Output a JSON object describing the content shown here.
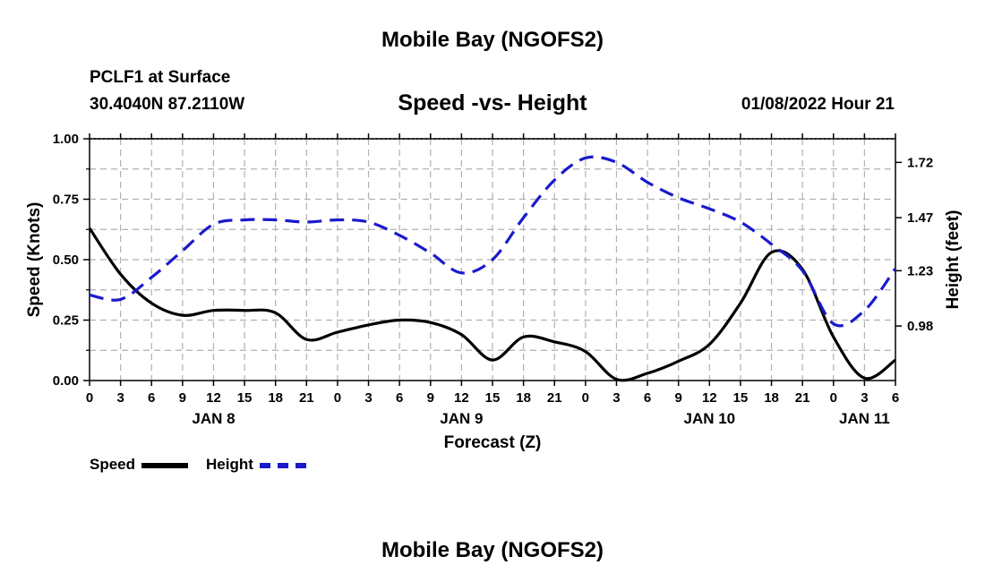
{
  "header": {
    "title": "Mobile Bay (NGOFS2)",
    "station": "PCLF1 at Surface",
    "coords": "30.4040N  87.2110W",
    "subtitle": "Speed -vs- Height",
    "datetime": "01/08/2022 Hour 21"
  },
  "footer": {
    "title": "Mobile Bay (NGOFS2)"
  },
  "legend": {
    "speed_label": "Speed",
    "height_label": "Height"
  },
  "colors": {
    "speed": "#000000",
    "height": "#1a1acc",
    "grid": "#b0b0b0"
  },
  "chart_data": {
    "type": "line",
    "xlabel": "Forecast (Z)",
    "ylabel_left": "Speed (Knots)",
    "ylabel_right": "Height (feet)",
    "x_unit": "hours from Jan 8 00Z",
    "xlim": [
      0,
      78
    ],
    "ylim_left": [
      0,
      1
    ],
    "ylim_right": [
      0.7333,
      1.8267
    ],
    "grid": true,
    "x_ticks": [
      0,
      3,
      6,
      9,
      12,
      15,
      18,
      21,
      24,
      27,
      30,
      33,
      36,
      39,
      42,
      45,
      48,
      51,
      54,
      57,
      60,
      63,
      66,
      69,
      72,
      75,
      78
    ],
    "x_tick_labels": [
      "0",
      "3",
      "6",
      "9",
      "12",
      "15",
      "18",
      "21",
      "0",
      "3",
      "6",
      "9",
      "12",
      "15",
      "18",
      "21",
      "0",
      "3",
      "6",
      "9",
      "12",
      "15",
      "18",
      "21",
      "0",
      "3",
      "6"
    ],
    "y_ticks_left": [
      0,
      0.25,
      0.5,
      0.75,
      1
    ],
    "y_tick_labels_left": [
      "0.00",
      "0.25",
      "0.50",
      "0.75",
      "1.00"
    ],
    "y_ticks_right": [
      0.98,
      1.23,
      1.47,
      1.72
    ],
    "y_tick_labels_right": [
      "0.98",
      "1.23",
      "1.47",
      "1.72"
    ],
    "day_labels": [
      {
        "x": 12,
        "label": "JAN 8"
      },
      {
        "x": 36,
        "label": "JAN 9"
      },
      {
        "x": 60,
        "label": "JAN 10"
      },
      {
        "x": 75,
        "label": "JAN 11"
      }
    ],
    "series": [
      {
        "name": "Speed",
        "axis": "left",
        "style": "solid",
        "points": [
          [
            0,
            0.63
          ],
          [
            3,
            0.44
          ],
          [
            6,
            0.32
          ],
          [
            9,
            0.27
          ],
          [
            12,
            0.29
          ],
          [
            15,
            0.29
          ],
          [
            18,
            0.28
          ],
          [
            21,
            0.17
          ],
          [
            24,
            0.2
          ],
          [
            27,
            0.23
          ],
          [
            30,
            0.25
          ],
          [
            33,
            0.24
          ],
          [
            36,
            0.19
          ],
          [
            39,
            0.085
          ],
          [
            42,
            0.18
          ],
          [
            45,
            0.16
          ],
          [
            48,
            0.12
          ],
          [
            51,
            0.005
          ],
          [
            54,
            0.03
          ],
          [
            57,
            0.08
          ],
          [
            60,
            0.15
          ],
          [
            63,
            0.32
          ],
          [
            66,
            0.53
          ],
          [
            69,
            0.46
          ],
          [
            72,
            0.18
          ],
          [
            75,
            0.01
          ],
          [
            78,
            0.085
          ]
        ]
      },
      {
        "name": "Height",
        "axis": "right",
        "style": "dashed",
        "points": [
          [
            0,
            1.12
          ],
          [
            3,
            1.1
          ],
          [
            6,
            1.2
          ],
          [
            9,
            1.32
          ],
          [
            12,
            1.44
          ],
          [
            15,
            1.46
          ],
          [
            18,
            1.46
          ],
          [
            21,
            1.45
          ],
          [
            24,
            1.46
          ],
          [
            27,
            1.45
          ],
          [
            30,
            1.39
          ],
          [
            33,
            1.31
          ],
          [
            36,
            1.22
          ],
          [
            39,
            1.28
          ],
          [
            42,
            1.47
          ],
          [
            45,
            1.64
          ],
          [
            48,
            1.74
          ],
          [
            51,
            1.72
          ],
          [
            54,
            1.63
          ],
          [
            57,
            1.56
          ],
          [
            60,
            1.51
          ],
          [
            63,
            1.45
          ],
          [
            66,
            1.35
          ],
          [
            69,
            1.23
          ],
          [
            72,
            0.99
          ],
          [
            75,
            1.05
          ],
          [
            78,
            1.24
          ]
        ]
      }
    ]
  }
}
